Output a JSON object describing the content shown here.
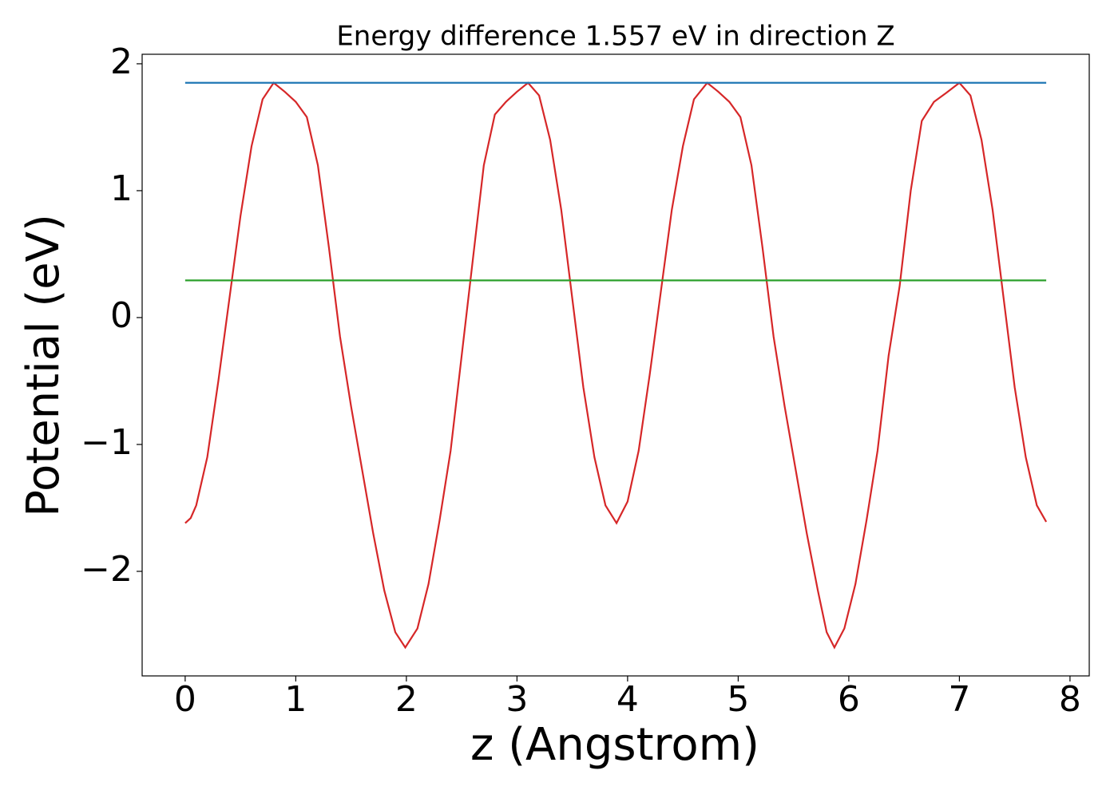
{
  "chart_data": {
    "type": "line",
    "title": "Energy difference 1.557 eV in direction Z",
    "x_label": "z (Angstrom)",
    "y_label": "Potential (eV)",
    "xlim": [
      -0.389,
      8.174
    ],
    "ylim": [
      -2.824,
      2.075
    ],
    "xticks": [
      0,
      1,
      2,
      3,
      4,
      5,
      6,
      7,
      8
    ],
    "yticks": [
      {
        "value": -2,
        "label": "−2"
      },
      {
        "value": -1,
        "label": "−1"
      },
      0,
      1,
      2
    ],
    "series": [
      {
        "color": "#d62728",
        "x": [
          0,
          0.05,
          0.1,
          0.2,
          0.3,
          0.4,
          0.5,
          0.6,
          0.7,
          0.8,
          0.9,
          1.0,
          1.1,
          1.2,
          1.3,
          1.4,
          1.5,
          1.6,
          1.7,
          1.8,
          1.9,
          1.99,
          2.1,
          2.2,
          2.3,
          2.4,
          2.5,
          2.6,
          2.7,
          2.8,
          2.9,
          3.0,
          3.1,
          3.2,
          3.3,
          3.4,
          3.5,
          3.6,
          3.7,
          3.8,
          3.9,
          4.0,
          4.1,
          4.2,
          4.3,
          4.4,
          4.5,
          4.6,
          4.72,
          4.82,
          4.92,
          5.02,
          5.12,
          5.22,
          5.32,
          5.42,
          5.52,
          5.62,
          5.72,
          5.8,
          5.87,
          5.96,
          6.06,
          6.16,
          6.26,
          6.36,
          6.46,
          6.56,
          6.66,
          6.77,
          6.88,
          7.0,
          7.1,
          7.2,
          7.3,
          7.4,
          7.5,
          7.6,
          7.7,
          7.785
        ],
        "values": [
          -1.62,
          -1.58,
          -1.48,
          -1.1,
          -0.5,
          0.15,
          0.8,
          1.35,
          1.72,
          1.85,
          1.78,
          1.7,
          1.58,
          1.2,
          0.55,
          -0.15,
          -0.7,
          -1.2,
          -1.7,
          -2.15,
          -2.48,
          -2.6,
          -2.45,
          -2.1,
          -1.6,
          -1.05,
          -0.3,
          0.45,
          1.2,
          1.6,
          1.7,
          1.78,
          1.85,
          1.75,
          1.4,
          0.85,
          0.15,
          -0.55,
          -1.1,
          -1.48,
          -1.62,
          -1.45,
          -1.05,
          -0.45,
          0.2,
          0.85,
          1.35,
          1.72,
          1.85,
          1.78,
          1.7,
          1.58,
          1.2,
          0.55,
          -0.15,
          -0.7,
          -1.2,
          -1.7,
          -2.15,
          -2.48,
          -2.6,
          -2.45,
          -2.1,
          -1.6,
          -1.05,
          -0.3,
          0.25,
          1.0,
          1.55,
          1.7,
          1.77,
          1.85,
          1.75,
          1.4,
          0.85,
          0.15,
          -0.55,
          -1.1,
          -1.48,
          -1.61
        ]
      },
      {
        "color": "#1f77b4",
        "x": [
          0,
          7.785
        ],
        "values": [
          1.85,
          1.85
        ]
      },
      {
        "color": "#2ca02c",
        "x": [
          0,
          7.785
        ],
        "values": [
          0.293,
          0.293
        ]
      }
    ]
  }
}
